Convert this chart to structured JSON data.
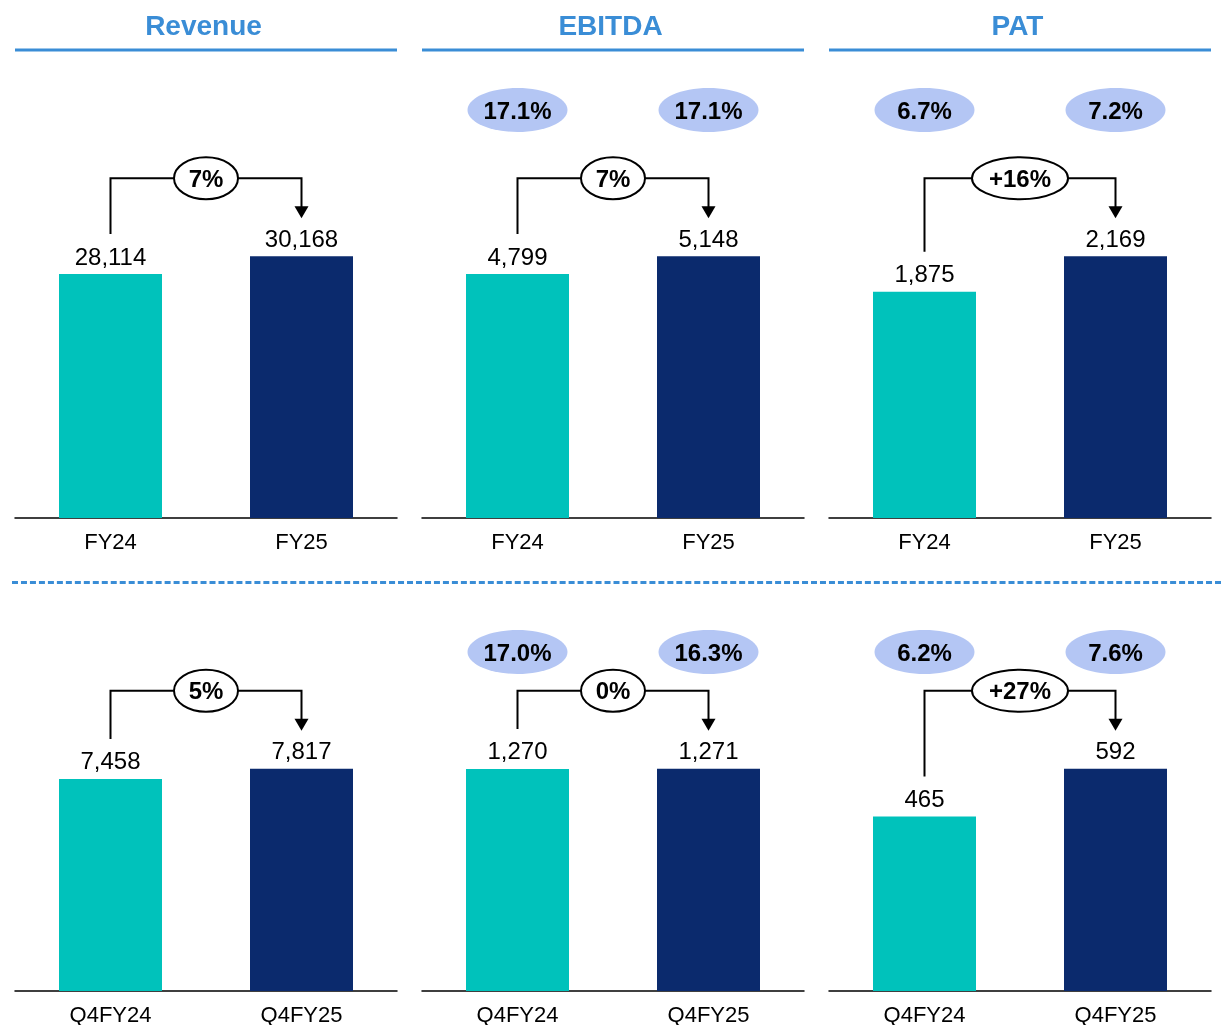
{
  "chart_data": [
    {
      "type": "bar",
      "title": "Revenue",
      "categories": [
        "FY24",
        "FY25"
      ],
      "values": [
        28114,
        30168
      ],
      "value_labels": [
        "28,114",
        "30,168"
      ],
      "colors": [
        "#00c2bb",
        "#0b2a6d"
      ],
      "tick_labels": "x",
      "annotations": [
        "7%"
      ]
    },
    {
      "type": "bar",
      "title": "EBITDA",
      "categories": [
        "FY24",
        "FY25"
      ],
      "values": [
        4799,
        5148
      ],
      "value_labels": [
        "4,799",
        "5,148"
      ],
      "colors": [
        "#00c2bb",
        "#0b2a6d"
      ],
      "tick_labels": "x",
      "annotations": [
        "17.1%",
        "17.1%",
        "7%"
      ]
    },
    {
      "type": "bar",
      "title": "PAT",
      "categories": [
        "FY24",
        "FY25"
      ],
      "values": [
        1875,
        2169
      ],
      "value_labels": [
        "1,875",
        "2,169"
      ],
      "colors": [
        "#00c2bb",
        "#0b2a6d"
      ],
      "tick_labels": "x",
      "annotations": [
        "6.7%",
        "7.2%",
        "+16%"
      ]
    },
    {
      "type": "bar",
      "categories": [
        "Q4FY24",
        "Q4FY25"
      ],
      "values": [
        7458,
        7817
      ],
      "value_labels": [
        "7,458",
        "7,817"
      ],
      "colors": [
        "#00c2bb",
        "#0b2a6d"
      ],
      "tick_labels": "x",
      "annotations": [
        "5%"
      ]
    },
    {
      "type": "bar",
      "categories": [
        "Q4FY24",
        "Q4FY25"
      ],
      "values": [
        1270,
        1271
      ],
      "value_labels": [
        "1,270",
        "1,271"
      ],
      "colors": [
        "#00c2bb",
        "#0b2a6d"
      ],
      "tick_labels": "x",
      "annotations": [
        "17.0%",
        "16.3%",
        "0%"
      ]
    },
    {
      "type": "bar",
      "categories": [
        "Q4FY24",
        "Q4FY25"
      ],
      "values": [
        465,
        592
      ],
      "value_labels": [
        "465",
        "592"
      ],
      "colors": [
        "#00c2bb",
        "#0b2a6d"
      ],
      "tick_labels": "x",
      "annotations": [
        "6.2%",
        "7.6%",
        "+27%"
      ]
    }
  ]
}
